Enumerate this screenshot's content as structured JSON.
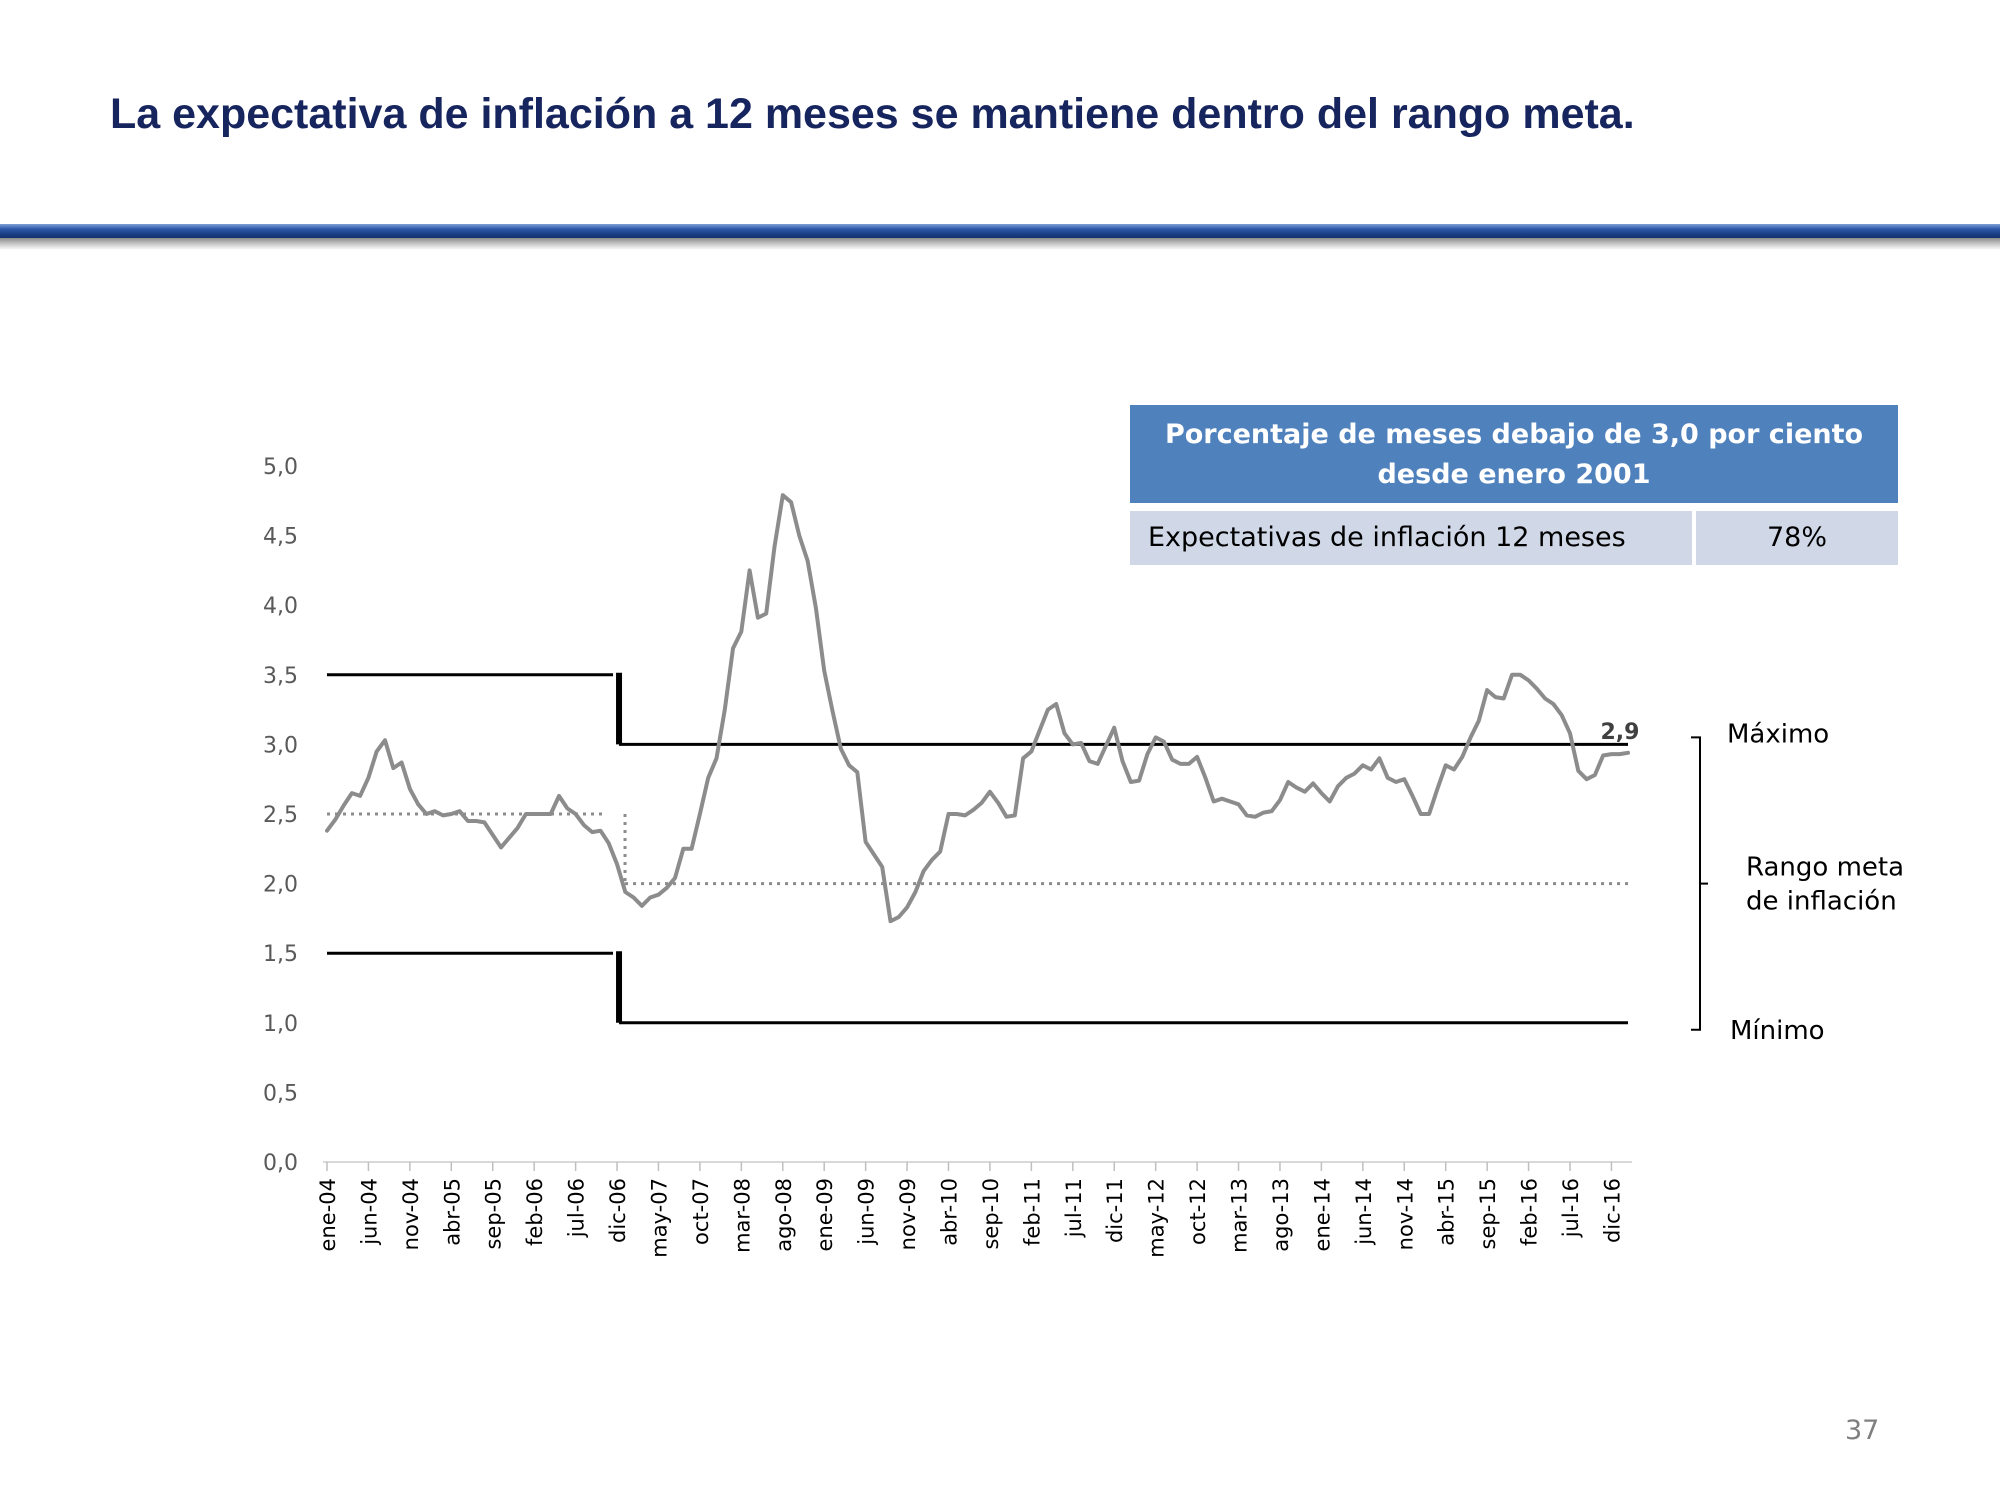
{
  "slide": {
    "title": "La expectativa de inflación a 12 meses se mantiene dentro del rango meta.",
    "page_number": "37"
  },
  "table": {
    "header": "Porcentaje de meses debajo de 3,0 por ciento desde enero 2001",
    "row_label": "Expectativas de inflación 12 meses",
    "row_value": "78%"
  },
  "colors": {
    "title": "#17255e",
    "table_header_bg": "#4f81bd",
    "table_row_bg": "#d0d8e8",
    "series_line": "#8c8c8c",
    "band_lines": "#000000",
    "target_dotted": "#8c8c8c"
  },
  "chart_data": {
    "type": "line",
    "title": "",
    "xlabel": "",
    "ylabel": "",
    "ylim": [
      0,
      5
    ],
    "y_ticks": [
      "0,0",
      "0,5",
      "1,0",
      "1,5",
      "2,0",
      "2,5",
      "3,0",
      "3,5",
      "4,0",
      "4,5",
      "5,0"
    ],
    "x_tick_labels": [
      "ene-04",
      "jun-04",
      "nov-04",
      "abr-05",
      "sep-05",
      "feb-06",
      "jul-06",
      "dic-06",
      "may-07",
      "oct-07",
      "mar-08",
      "ago-08",
      "ene-09",
      "jun-09",
      "nov-09",
      "abr-10",
      "sep-10",
      "feb-11",
      "jul-11",
      "dic-11",
      "may-12",
      "oct-12",
      "mar-13",
      "ago-13",
      "ene-14",
      "jun-14",
      "nov-14",
      "abr-15",
      "sep-15",
      "feb-16",
      "jul-16",
      "dic-16"
    ],
    "x_tick_interval_months": 5,
    "series": [
      {
        "name": "",
        "values": [
          2.38,
          2.46,
          2.56,
          2.65,
          2.63,
          2.76,
          2.95,
          3.03,
          2.83,
          2.87,
          2.68,
          2.57,
          2.5,
          2.52,
          2.49,
          2.5,
          2.52,
          2.45,
          2.45,
          2.44,
          2.35,
          2.26,
          2.33,
          2.4,
          2.5,
          2.5,
          2.5,
          2.5,
          2.63,
          2.54,
          2.5,
          2.42,
          2.37,
          2.38,
          2.29,
          2.14,
          1.94,
          1.9,
          1.84,
          1.9,
          1.92,
          1.97,
          2.04,
          2.25,
          2.25,
          2.5,
          2.76,
          2.9,
          3.25,
          3.69,
          3.81,
          4.25,
          3.91,
          3.94,
          4.42,
          4.79,
          4.74,
          4.5,
          4.32,
          3.98,
          3.53,
          3.24,
          2.97,
          2.85,
          2.8,
          2.3,
          2.21,
          2.12,
          1.73,
          1.76,
          1.83,
          1.94,
          2.09,
          2.17,
          2.23,
          2.5,
          2.5,
          2.49,
          2.53,
          2.58,
          2.66,
          2.58,
          2.48,
          2.49,
          2.9,
          2.95,
          3.1,
          3.25,
          3.29,
          3.08,
          3.0,
          3.01,
          2.88,
          2.86,
          2.99,
          3.12,
          2.88,
          2.73,
          2.74,
          2.93,
          3.05,
          3.02,
          2.89,
          2.86,
          2.86,
          2.91,
          2.76,
          2.59,
          2.61,
          2.59,
          2.57,
          2.49,
          2.48,
          2.51,
          2.52,
          2.6,
          2.73,
          2.69,
          2.66,
          2.72,
          2.65,
          2.59,
          2.7,
          2.76,
          2.79,
          2.85,
          2.82,
          2.9,
          2.76,
          2.73,
          2.75,
          2.63,
          2.5,
          2.5,
          2.68,
          2.85,
          2.82,
          2.91,
          3.05,
          3.17,
          3.39,
          3.34,
          3.33,
          3.5,
          3.5,
          3.46,
          3.4,
          3.33,
          3.29,
          3.21,
          3.08,
          2.81,
          2.75,
          2.78,
          2.92,
          2.93,
          2.93,
          2.94
        ]
      }
    ],
    "target_band": {
      "max_label": "Máximo",
      "min_label": "Mínimo",
      "range_label_line1": "Rango   meta",
      "range_label_line2": "de inflación",
      "before_dic06": {
        "max": 3.5,
        "min": 1.5,
        "center": 2.5
      },
      "from_dic06": {
        "max": 3.0,
        "min": 1.0,
        "center": 2.0
      }
    },
    "annotations": [
      {
        "text": "2,9",
        "target": "last-point"
      }
    ],
    "grid": false,
    "legend": "none"
  }
}
